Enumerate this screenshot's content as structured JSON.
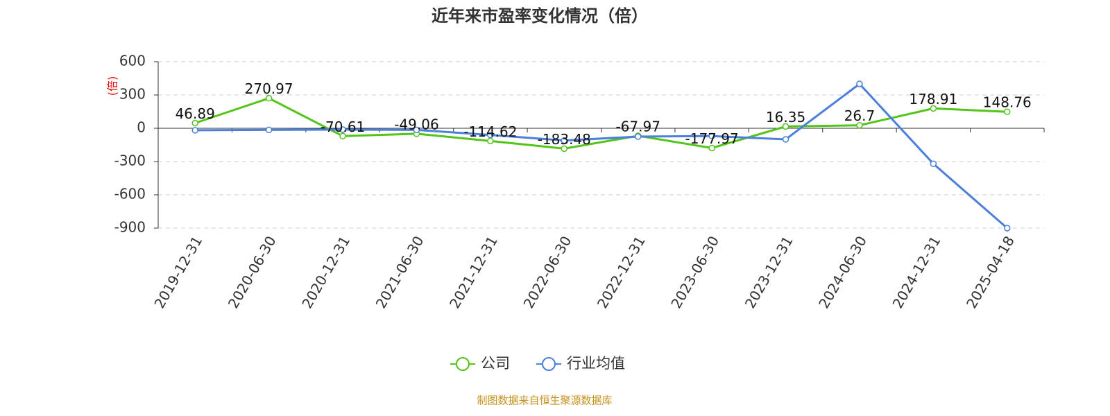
{
  "chart_data": {
    "type": "line",
    "title": "近年来市盈率变化情况（倍）",
    "y_label": "(倍)",
    "source": "制图数据来自恒生聚源数据库",
    "categories": [
      "2019-12-31",
      "2020-06-30",
      "2020-12-31",
      "2021-06-30",
      "2021-12-31",
      "2022-06-30",
      "2022-12-31",
      "2023-06-30",
      "2023-12-31",
      "2024-06-30",
      "2024-12-31",
      "2025-04-18"
    ],
    "series": [
      {
        "name": "公司",
        "color": "#52c41a",
        "show_labels": true,
        "values": [
          46.89,
          270.97,
          -70.61,
          -49.06,
          -114.62,
          -183.48,
          -67.97,
          -177.97,
          16.35,
          26.7,
          178.91,
          148.76
        ]
      },
      {
        "name": "行业均值",
        "color": "#4a7fdc",
        "show_labels": false,
        "values": [
          -18,
          -15,
          -12,
          -15,
          -60,
          -110,
          -75,
          -70,
          -100,
          400,
          -320,
          -900
        ]
      }
    ],
    "ylim": [
      -900,
      600
    ],
    "yticks": [
      -900,
      -600,
      -300,
      0,
      300,
      600
    ],
    "grid": true,
    "legend": "bottom"
  }
}
